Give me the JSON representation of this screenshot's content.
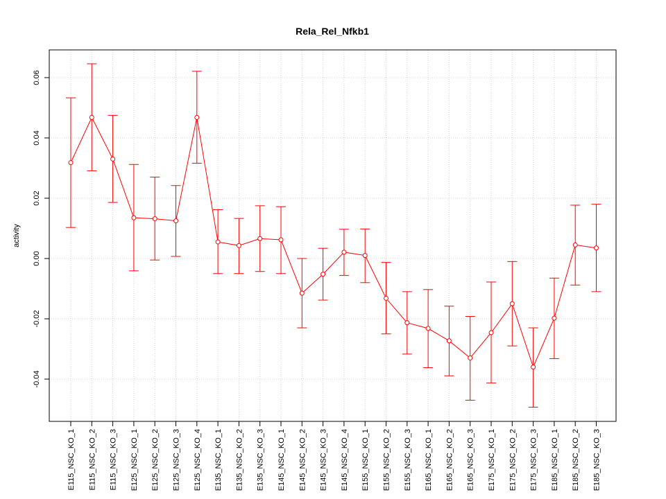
{
  "chart_data": {
    "type": "line",
    "title": "Rela_Rel_Nfkb1",
    "xlabel": "",
    "ylabel": "activity",
    "ylim": [
      -0.054,
      0.069
    ],
    "y_ticks": [
      -0.04,
      -0.02,
      0.0,
      0.02,
      0.04,
      0.06
    ],
    "y_tick_labels": [
      "-0.04",
      "-0.02",
      "0.00",
      "0.02",
      "0.04",
      "0.06"
    ],
    "grid": true,
    "line_color": "#ff0000",
    "categories": [
      "E115_NSC_KO_1",
      "E115_NSC_KO_2",
      "E115_NSC_KO_3",
      "E125_NSC_KO_1",
      "E125_NSC_KO_2",
      "E125_NSC_KO_3",
      "E125_NSC_KO_4",
      "E135_NSC_KO_1",
      "E135_NSC_KO_2",
      "E135_NSC_KO_3",
      "E145_NSC_KO_1",
      "E145_NSC_KO_2",
      "E145_NSC_KO_3",
      "E145_NSC_KO_4",
      "E155_NSC_KO_1",
      "E155_NSC_KO_2",
      "E155_NSC_KO_3",
      "E165_NSC_KO_1",
      "E165_NSC_KO_2",
      "E165_NSC_KO_3",
      "E175_NSC_KO_1",
      "E175_NSC_KO_2",
      "E175_NSC_KO_3",
      "E185_NSC_KO_1",
      "E185_NSC_KO_2",
      "E185_NSC_KO_3"
    ],
    "values": [
      0.0318,
      0.0468,
      0.033,
      0.0135,
      0.0132,
      0.0125,
      0.0468,
      0.0055,
      0.0043,
      0.0066,
      0.0062,
      -0.0115,
      -0.0052,
      0.0021,
      0.001,
      -0.0132,
      -0.0213,
      -0.0232,
      -0.0273,
      -0.033,
      -0.0246,
      -0.015,
      -0.036,
      -0.0198,
      0.0045,
      0.0035
    ],
    "lower": [
      0.0103,
      0.0291,
      0.0186,
      -0.0041,
      -0.0005,
      0.0007,
      0.0316,
      -0.005,
      -0.005,
      -0.0043,
      -0.005,
      -0.023,
      -0.0138,
      -0.0056,
      -0.008,
      -0.025,
      -0.0317,
      -0.0362,
      -0.0389,
      -0.047,
      -0.0413,
      -0.029,
      -0.0493,
      -0.0332,
      -0.0088,
      -0.011
    ],
    "upper": [
      0.0533,
      0.0646,
      0.0475,
      0.0312,
      0.027,
      0.0242,
      0.0621,
      0.0162,
      0.0133,
      0.0175,
      0.0172,
      0.0,
      0.0034,
      0.0097,
      0.0098,
      -0.0013,
      -0.011,
      -0.0103,
      -0.0158,
      -0.0192,
      -0.0078,
      -0.001,
      -0.023,
      -0.0065,
      0.0177,
      0.018
    ]
  }
}
